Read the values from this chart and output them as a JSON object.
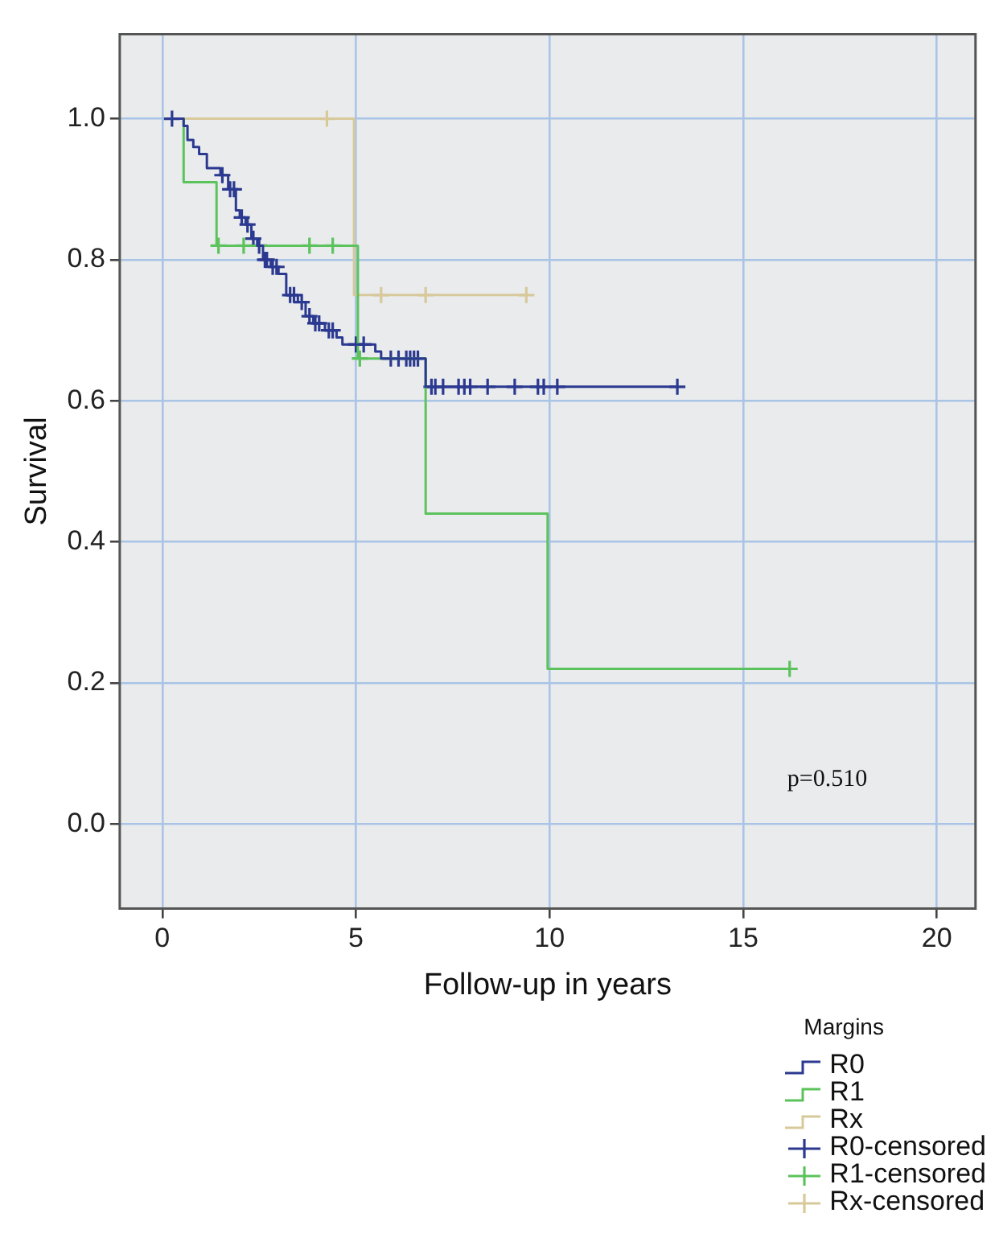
{
  "chart_data": {
    "type": "step",
    "xlabel": "Follow-up in years",
    "ylabel": "Survival",
    "legend_title": "Margins",
    "xlim": [
      -1.1,
      21
    ],
    "ylim": [
      -0.12,
      1.12
    ],
    "xticks": [
      0,
      5,
      10,
      15,
      20
    ],
    "yticks": [
      {
        "value": 0,
        "label": "0.0"
      },
      0.2,
      0.4,
      0.6,
      0.8,
      {
        "value": 1,
        "label": "1.0"
      }
    ],
    "grid": true,
    "legend": "bottom right",
    "annotations": [
      "p=0.510"
    ],
    "series": [
      {
        "name": "R0",
        "color": "#2b3990",
        "marker": "none",
        "x": [
          0.25,
          0.55,
          0.65,
          0.8,
          0.95,
          1.15,
          1.5,
          1.7,
          1.9,
          2.0,
          2.15,
          2.3,
          2.45,
          2.6,
          2.8,
          3.0,
          3.2,
          3.5,
          3.7,
          3.9,
          4.2,
          4.5,
          4.65,
          5.5,
          5.65,
          6.8,
          13.3
        ],
        "values": [
          1.0,
          0.99,
          0.97,
          0.96,
          0.95,
          0.93,
          0.92,
          0.9,
          0.87,
          0.86,
          0.85,
          0.83,
          0.82,
          0.8,
          0.79,
          0.78,
          0.75,
          0.74,
          0.72,
          0.71,
          0.7,
          0.69,
          0.68,
          0.67,
          0.66,
          0.62,
          0.62
        ]
      },
      {
        "name": "R1",
        "color": "#5cc35c",
        "marker": "none",
        "x": [
          0.25,
          0.55,
          1.4,
          5.05,
          6.8,
          9.95,
          16.2
        ],
        "values": [
          1.0,
          0.91,
          0.82,
          0.66,
          0.44,
          0.22,
          0.22
        ]
      },
      {
        "name": "Rx",
        "color": "#d8c99a",
        "marker": "none",
        "x": [
          0.3,
          4.95,
          9.4
        ],
        "values": [
          1.0,
          0.75,
          0.75
        ]
      },
      {
        "name": "R0-censored",
        "type": "scatter",
        "color": "#2b3990",
        "marker": "cross",
        "x": [
          0.25,
          1.55,
          1.75,
          1.85,
          2.05,
          2.2,
          2.35,
          2.5,
          2.65,
          2.7,
          2.85,
          2.95,
          3.3,
          3.4,
          3.6,
          3.8,
          3.95,
          4.05,
          4.3,
          4.4,
          5.0,
          5.2,
          5.9,
          6.1,
          6.3,
          6.4,
          6.5,
          6.6,
          6.95,
          7.05,
          7.25,
          7.65,
          7.8,
          7.95,
          8.4,
          9.1,
          9.7,
          9.85,
          10.2,
          13.3
        ],
        "values": [
          1.0,
          0.92,
          0.9,
          0.9,
          0.86,
          0.85,
          0.83,
          0.82,
          0.8,
          0.8,
          0.79,
          0.79,
          0.75,
          0.75,
          0.74,
          0.72,
          0.71,
          0.71,
          0.7,
          0.7,
          0.68,
          0.68,
          0.66,
          0.66,
          0.66,
          0.66,
          0.66,
          0.66,
          0.62,
          0.62,
          0.62,
          0.62,
          0.62,
          0.62,
          0.62,
          0.62,
          0.62,
          0.62,
          0.62,
          0.62
        ]
      },
      {
        "name": "R1-censored",
        "type": "scatter",
        "color": "#5cc35c",
        "marker": "cross",
        "x": [
          1.45,
          2.1,
          3.8,
          4.4,
          5.1,
          16.2
        ],
        "values": [
          0.82,
          0.82,
          0.82,
          0.82,
          0.66,
          0.22
        ]
      },
      {
        "name": "Rx-censored",
        "type": "scatter",
        "color": "#d8c99a",
        "marker": "cross",
        "x": [
          4.25,
          5.65,
          6.8,
          9.4
        ],
        "values": [
          1.0,
          0.75,
          0.75,
          0.75
        ]
      }
    ]
  }
}
